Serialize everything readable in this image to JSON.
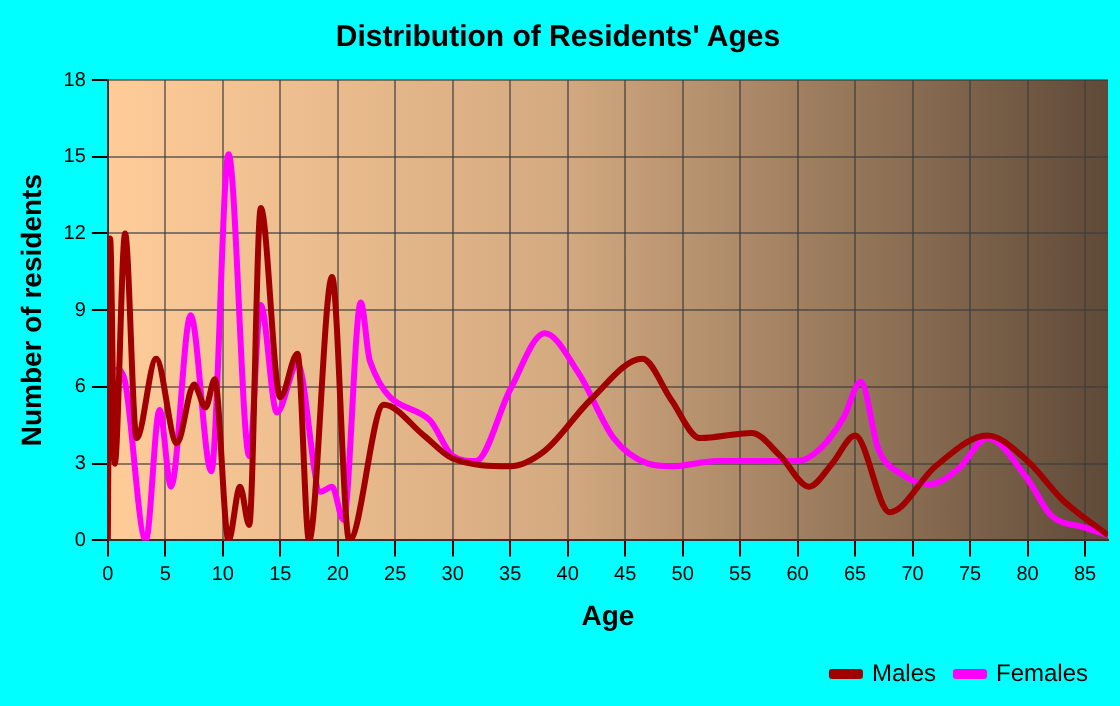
{
  "chart_data": {
    "type": "line",
    "title": "Distribution of Residents' Ages",
    "xlabel": "Age",
    "ylabel": "Number of residents",
    "xlim": [
      0,
      87
    ],
    "xticks": [
      0,
      5,
      10,
      15,
      20,
      25,
      30,
      35,
      40,
      45,
      50,
      55,
      60,
      65,
      70,
      75,
      80,
      85
    ],
    "ylim": [
      0,
      18
    ],
    "yticks": [
      0,
      3,
      6,
      9,
      12,
      15,
      18
    ],
    "grid": true,
    "legend": "bottom right",
    "marker": "none",
    "line_style": "solid",
    "series": [
      {
        "name": "Males",
        "color": "#a00000",
        "x": [
          0,
          0.2,
          0.6,
          1.5,
          2.5,
          4.2,
          6,
          7.5,
          8.5,
          9.3,
          10.5,
          11.5,
          12.3,
          13.3,
          15,
          16.5,
          17.5,
          19.5,
          21,
          24,
          27.5,
          30,
          35,
          38,
          42,
          46.5,
          49,
          51.5,
          56,
          58.5,
          61,
          63,
          65,
          68,
          72,
          76.5,
          80,
          83,
          87
        ],
        "values": [
          0,
          11.8,
          3,
          12,
          4,
          7.1,
          3.8,
          6.1,
          5.2,
          6.3,
          0,
          2.1,
          0.6,
          13,
          5.6,
          7.3,
          0,
          10.3,
          0,
          5.3,
          4.1,
          3.2,
          2.9,
          3.5,
          5.5,
          7.1,
          5.5,
          4,
          4.2,
          3.3,
          2.1,
          3,
          4.1,
          1.1,
          2.9,
          4.1,
          3.1,
          1.6,
          0.2
        ]
      },
      {
        "name": "Females",
        "color": "#ff00ff",
        "x": [
          0.8,
          1.5,
          3.3,
          4.5,
          5.5,
          7.2,
          9,
          10.5,
          12.3,
          13.3,
          14.7,
          16.5,
          18.5,
          19.5,
          20.5,
          22,
          22.8,
          28,
          30,
          32,
          35,
          38,
          41,
          44,
          47,
          49,
          53,
          58,
          60,
          62,
          64,
          65.5,
          67,
          69,
          71.5,
          74,
          76.5,
          80,
          82,
          85,
          87
        ],
        "values": [
          6.8,
          6.2,
          0,
          5.1,
          2.1,
          8.8,
          2.7,
          15.1,
          3.3,
          9.2,
          5,
          6.9,
          1.9,
          2.1,
          0.8,
          9.3,
          7,
          4.7,
          3.3,
          3.1,
          5.9,
          8.1,
          6.5,
          4,
          3,
          2.9,
          3.1,
          3.1,
          3.1,
          3.6,
          4.8,
          6.2,
          3.6,
          2.6,
          2.2,
          2.8,
          4,
          2.4,
          1,
          0.5,
          0.2
        ]
      }
    ]
  }
}
